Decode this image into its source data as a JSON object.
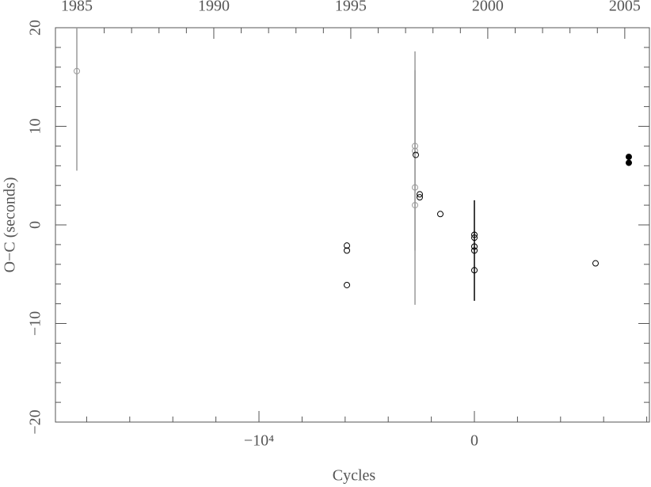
{
  "chart_data": {
    "type": "scatter",
    "xlabel": "Cycles",
    "ylabel": "O−C (seconds)",
    "xlim": [
      -19449,
      8125
    ],
    "xticks": [
      {
        "value": -10000,
        "label": "−10⁴"
      },
      0
    ],
    "xminorticks": [
      -18000,
      -16000,
      -14000,
      -12000,
      -8000,
      -6000,
      -4000,
      -2000,
      2000,
      4000,
      6000,
      8000
    ],
    "x2lim": [
      1984.22,
      2005.9
    ],
    "x2ticks": [
      1985,
      1990,
      1995,
      2000,
      2005
    ],
    "x2minorticks": [
      1986,
      1987,
      1988,
      1989,
      1991,
      1992,
      1993,
      1994,
      1996,
      1997,
      1998,
      1999,
      2001,
      2002,
      2003,
      2004
    ],
    "ylim": [
      -20,
      20
    ],
    "yticks": [
      {
        "value": -20,
        "label": "−20"
      },
      {
        "value": -10,
        "label": "−10"
      },
      0,
      10,
      20
    ],
    "yminorticks": [
      -18,
      -16,
      -14,
      -12,
      -8,
      -6,
      -4,
      -2,
      2,
      4,
      6,
      8,
      12,
      14,
      16,
      18
    ],
    "series": [
      {
        "color": "#9a9a9a",
        "filled": false,
        "x": [
          -18456,
          -2757,
          -2757,
          -2757,
          -2757
        ],
        "values": [
          15.6,
          8.0,
          7.5,
          3.8,
          2.0
        ],
        "errors": [
          10.1,
          null,
          10.1,
          11.9,
          null
        ]
      },
      {
        "color": "#000000",
        "filled": false,
        "x": [
          -5919,
          -5919,
          -5919,
          -2721,
          -2537,
          -2537,
          -1581,
          0,
          0,
          0,
          0,
          0,
          5625
        ],
        "values": [
          -2.1,
          -2.6,
          -6.1,
          7.1,
          3.1,
          2.8,
          1.1,
          -1.0,
          -1.3,
          -2.2,
          -2.6,
          -4.6,
          -3.9
        ],
        "errors": [
          null,
          null,
          null,
          null,
          null,
          null,
          null,
          null,
          null,
          null,
          5.1,
          null,
          null
        ]
      },
      {
        "color": "#000000",
        "filled": true,
        "x": [
          7169,
          7169
        ],
        "values": [
          6.9,
          6.3
        ],
        "errors": [
          null,
          null
        ]
      }
    ]
  }
}
